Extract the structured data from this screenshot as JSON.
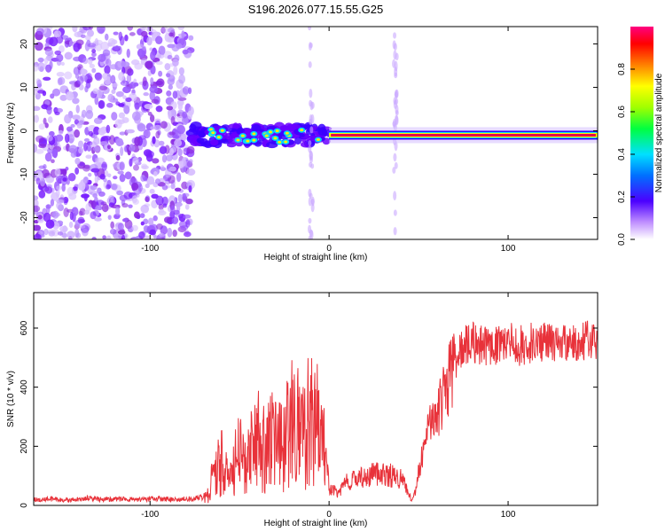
{
  "title": "S196.2026.077.15.55.G25",
  "colors": {
    "snr_line": "#e8323a",
    "band_core": "#e3004a",
    "speckle": "#9b30ff"
  },
  "chart_data": [
    {
      "type": "heatmap",
      "title": "S196.2026.077.15.55.G25",
      "xlabel": "Height of straight line (km)",
      "ylabel": "Frequency (Hz)",
      "xlim": [
        -165,
        150
      ],
      "ylim": [
        -25,
        24
      ],
      "xticks": [
        "-100",
        "0",
        "100"
      ],
      "yticks": [
        "20",
        "10",
        "0",
        "-10",
        "-20"
      ],
      "xtick_values": [
        -100,
        0,
        100
      ],
      "ytick_values": [
        20,
        10,
        0,
        -10,
        -20
      ],
      "colorbar": {
        "label": "Normalized spectral amplitude",
        "range": [
          0,
          1
        ],
        "ticks": [
          "0.0",
          "0.2",
          "0.4",
          "0.6",
          "0.8"
        ],
        "tick_values": [
          0,
          0.2,
          0.4,
          0.6,
          0.8
        ]
      },
      "features": {
        "noise_region_x": [
          -165,
          -77
        ],
        "scattered_band_x": [
          -77,
          0
        ],
        "steady_band_x": [
          0,
          150
        ],
        "band_center_hz": -1
      }
    },
    {
      "type": "line",
      "xlabel": "Height of straight line (km)",
      "ylabel": "SNR (10 * v/v)",
      "xlim": [
        -165,
        150
      ],
      "ylim": [
        0,
        720
      ],
      "xticks": [
        "-100",
        "0",
        "100"
      ],
      "yticks": [
        "0",
        "200",
        "400",
        "600"
      ],
      "xtick_values": [
        -100,
        0,
        100
      ],
      "ytick_values": [
        0,
        200,
        400,
        600
      ],
      "series": [
        {
          "name": "SNR",
          "x": [
            -165,
            -155,
            -145,
            -135,
            -125,
            -115,
            -105,
            -95,
            -85,
            -75,
            -68,
            -65,
            -60,
            -55,
            -50,
            -45,
            -40,
            -35,
            -30,
            -25,
            -20,
            -15,
            -10,
            -5,
            -2,
            0,
            5,
            10,
            15,
            20,
            25,
            30,
            35,
            40,
            44,
            46,
            48,
            50,
            55,
            60,
            65,
            70,
            75,
            80,
            85,
            90,
            95,
            100,
            105,
            110,
            115,
            120,
            125,
            130,
            135,
            140,
            145,
            150
          ],
          "values": [
            20,
            22,
            18,
            24,
            20,
            22,
            19,
            23,
            20,
            24,
            30,
            90,
            150,
            100,
            180,
            160,
            220,
            190,
            260,
            210,
            300,
            230,
            310,
            250,
            180,
            60,
            40,
            80,
            95,
            100,
            105,
            110,
            100,
            90,
            50,
            15,
            40,
            120,
            240,
            320,
            380,
            480,
            520,
            540,
            530,
            520,
            535,
            540,
            525,
            530,
            545,
            540,
            530,
            535,
            540,
            530,
            545,
            520
          ]
        }
      ]
    }
  ]
}
